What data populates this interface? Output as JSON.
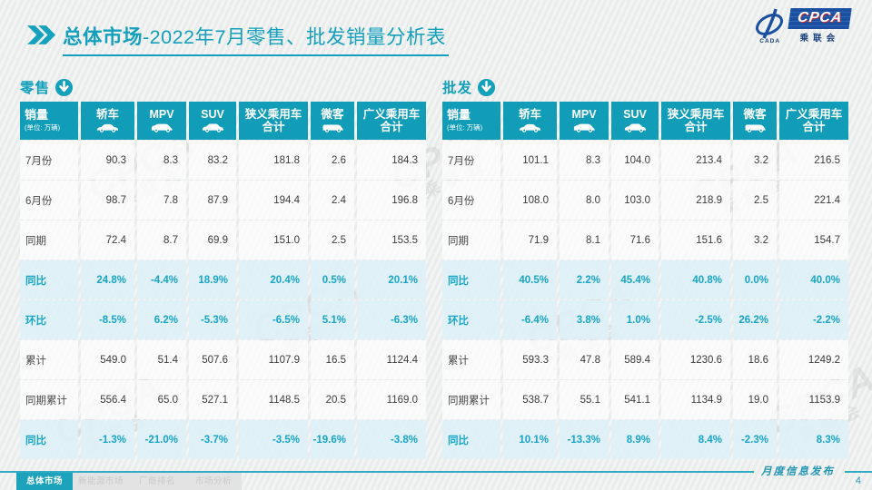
{
  "header": {
    "title_bold": "总体市场",
    "title_rest": "-2022年7月零售、批发销量分析表",
    "logo": {
      "acronym": "CPCA",
      "chinese": "乘联会",
      "left_caption": "CADA"
    }
  },
  "watermark": {
    "line1": "CPCA",
    "line2": "乘联会"
  },
  "colors": {
    "teal_header": "#119db8",
    "teal_title": "#14a0bc",
    "percent_text": "#18a5c6",
    "percent_row_bg": "#def0f8",
    "logo_blue": "#1b4f9f",
    "footer_rule": "#2fabc3"
  },
  "tables": [
    {
      "section_label": "零售",
      "section_icon": "down-arrow-circle-icon",
      "unit_label": "销量",
      "unit_sub": "(单位: 万辆)",
      "columns": [
        {
          "label": "轿车",
          "icon": "sedan-icon"
        },
        {
          "label": "MPV",
          "icon": "mpv-icon"
        },
        {
          "label": "SUV",
          "icon": "suv-icon"
        },
        {
          "label": "狭义乘用车",
          "label2": "合计"
        },
        {
          "label": "微客",
          "icon": "van-icon"
        },
        {
          "label": "广义乘用车",
          "label2": "合计"
        }
      ],
      "rows": [
        {
          "label": "7月份",
          "type": "normal",
          "values": [
            "90.3",
            "8.3",
            "83.2",
            "181.8",
            "2.6",
            "184.3"
          ]
        },
        {
          "label": "6月份",
          "type": "normal",
          "values": [
            "98.7",
            "7.8",
            "87.9",
            "194.4",
            "2.4",
            "196.8"
          ]
        },
        {
          "label": "同期",
          "type": "normal",
          "values": [
            "72.4",
            "8.7",
            "69.9",
            "151.0",
            "2.5",
            "153.5"
          ]
        },
        {
          "label": "同比",
          "type": "percent",
          "values": [
            "24.8%",
            "-4.4%",
            "18.9%",
            "20.4%",
            "0.5%",
            "20.1%"
          ]
        },
        {
          "label": "环比",
          "type": "percent",
          "values": [
            "-8.5%",
            "6.2%",
            "-5.3%",
            "-6.5%",
            "5.1%",
            "-6.3%"
          ]
        },
        {
          "label": "累计",
          "type": "normal",
          "values": [
            "549.0",
            "51.4",
            "507.6",
            "1107.9",
            "16.5",
            "1124.4"
          ]
        },
        {
          "label": "同期累计",
          "type": "normal",
          "values": [
            "556.4",
            "65.0",
            "527.1",
            "1148.5",
            "20.5",
            "1169.0"
          ]
        },
        {
          "label": "同比",
          "type": "percent",
          "values": [
            "-1.3%",
            "-21.0%",
            "-3.7%",
            "-3.5%",
            "-19.6%",
            "-3.8%"
          ]
        }
      ]
    },
    {
      "section_label": "批发",
      "section_icon": "down-arrow-circle-icon",
      "unit_label": "销量",
      "unit_sub": "(单位: 万辆)",
      "columns": [
        {
          "label": "轿车",
          "icon": "sedan-icon"
        },
        {
          "label": "MPV",
          "icon": "mpv-icon"
        },
        {
          "label": "SUV",
          "icon": "suv-icon"
        },
        {
          "label": "狭义乘用车",
          "label2": "合计"
        },
        {
          "label": "微客",
          "icon": "van-icon"
        },
        {
          "label": "广义乘用车",
          "label2": "合计"
        }
      ],
      "rows": [
        {
          "label": "7月份",
          "type": "normal",
          "values": [
            "101.1",
            "8.3",
            "104.0",
            "213.4",
            "3.2",
            "216.5"
          ]
        },
        {
          "label": "6月份",
          "type": "normal",
          "values": [
            "108.0",
            "8.0",
            "103.0",
            "218.9",
            "2.5",
            "221.4"
          ]
        },
        {
          "label": "同期",
          "type": "normal",
          "values": [
            "71.9",
            "8.1",
            "71.6",
            "151.6",
            "3.2",
            "154.7"
          ]
        },
        {
          "label": "同比",
          "type": "percent",
          "values": [
            "40.5%",
            "2.2%",
            "45.4%",
            "40.8%",
            "0.0%",
            "40.0%"
          ]
        },
        {
          "label": "环比",
          "type": "percent",
          "values": [
            "-6.4%",
            "3.8%",
            "1.0%",
            "-2.5%",
            "26.2%",
            "-2.2%"
          ]
        },
        {
          "label": "累计",
          "type": "normal",
          "values": [
            "593.3",
            "47.8",
            "589.4",
            "1230.6",
            "18.6",
            "1249.2"
          ]
        },
        {
          "label": "同期累计",
          "type": "normal",
          "values": [
            "538.7",
            "55.1",
            "541.1",
            "1134.9",
            "19.0",
            "1153.9"
          ]
        },
        {
          "label": "同比",
          "type": "percent",
          "values": [
            "10.1%",
            "-13.3%",
            "8.9%",
            "8.4%",
            "-2.3%",
            "8.3%"
          ]
        }
      ]
    }
  ],
  "footer": {
    "tabs": [
      {
        "label": "总体市场",
        "active": true
      },
      {
        "label": "新能源市场",
        "active": false
      },
      {
        "label": "厂商排名",
        "active": false
      },
      {
        "label": "市场分析",
        "active": false
      }
    ],
    "note": "月度信息发布",
    "page_number": "4"
  }
}
